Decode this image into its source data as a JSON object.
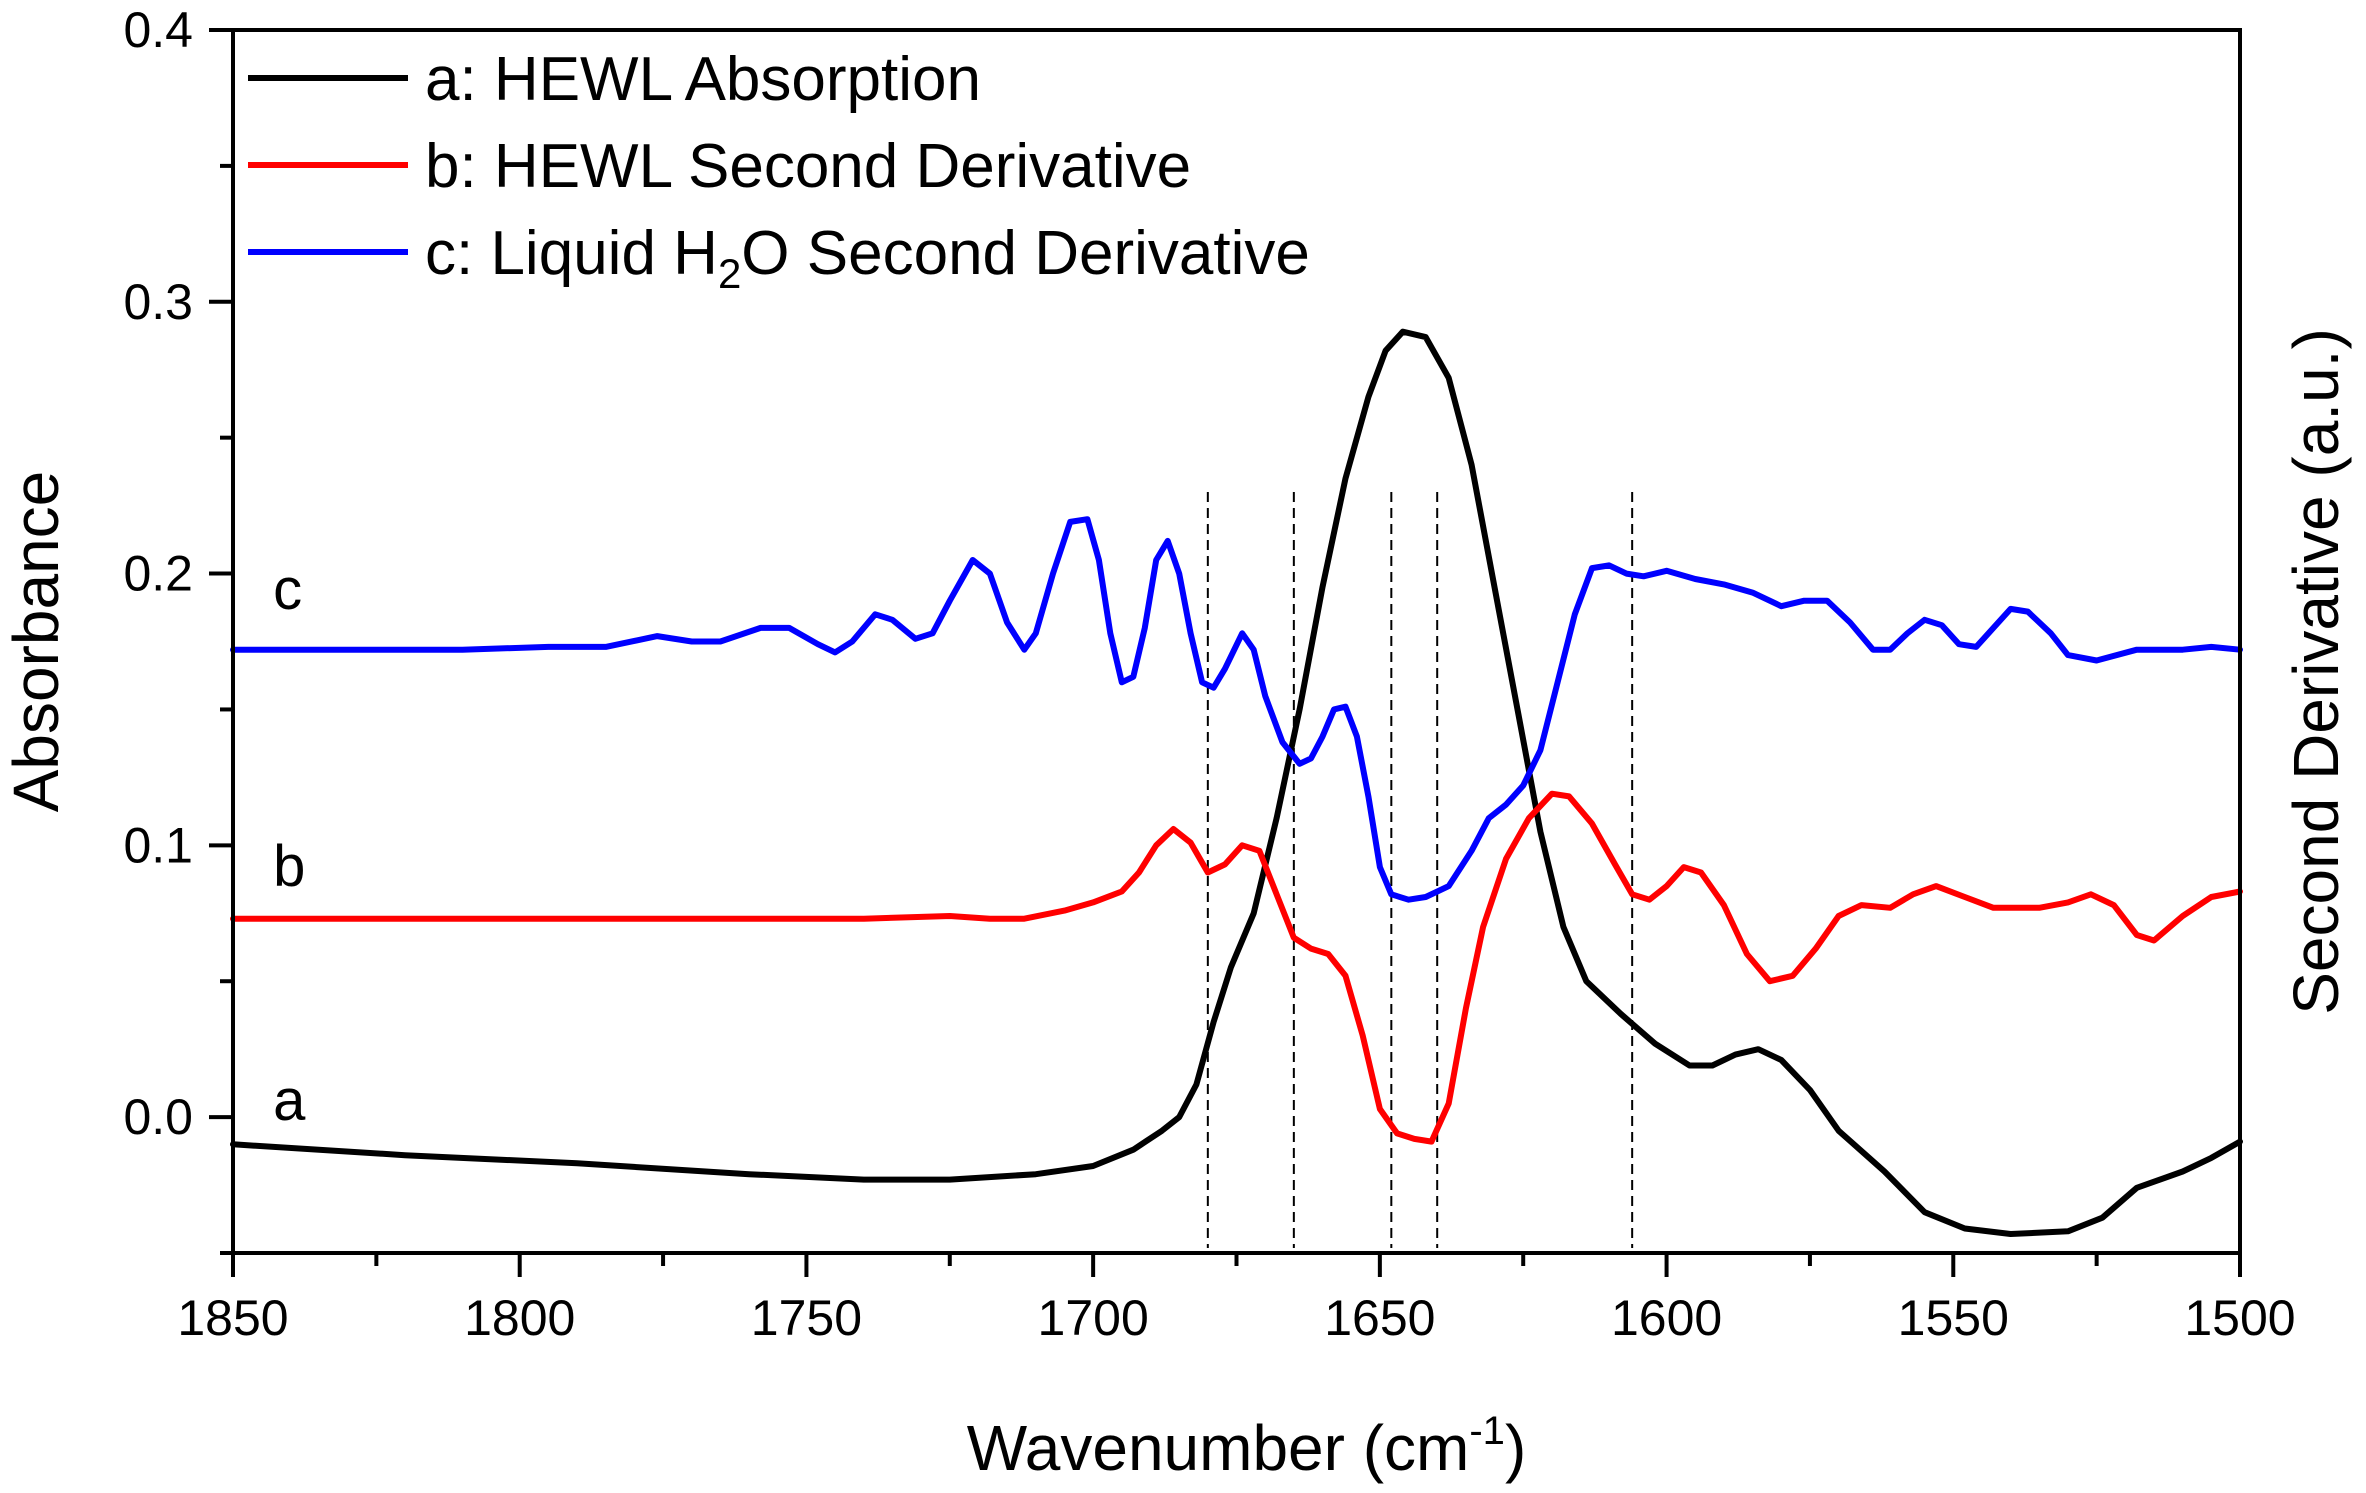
{
  "chart_data": {
    "type": "line",
    "title": "",
    "xlabel": "Wavenumber (cm",
    "xlabel_sup": "-1",
    "xlabel_end": ")",
    "ylabel": "Absorbance",
    "y2label": "Second Derivative (a.u.)",
    "xlim": [
      1850,
      1500
    ],
    "ylim": [
      -0.05,
      0.4
    ],
    "x_ticks": [
      1850,
      1800,
      1750,
      1700,
      1650,
      1600,
      1550,
      1500
    ],
    "x_tick_labels": [
      "1850",
      "1800",
      "1750",
      "1700",
      "1650",
      "1600",
      "1550",
      "1500"
    ],
    "y_ticks": [
      0.0,
      0.1,
      0.2,
      0.3,
      0.4
    ],
    "y_tick_labels": [
      "0.0",
      "0.1",
      "0.2",
      "0.3",
      "0.4"
    ],
    "reference_lines": [
      1680,
      1665,
      1648,
      1640,
      1606
    ],
    "legend": [
      {
        "key": "a",
        "text": "a: HEWL Absorption",
        "color": "#000000"
      },
      {
        "key": "b",
        "text": "b: HEWL Second Derivative",
        "color": "#ff0000"
      },
      {
        "key": "c",
        "text_pre": "c: Liquid H",
        "text_sub": "2",
        "text_post": "O Second Derivative",
        "color": "#0000ff"
      }
    ],
    "curve_labels": [
      {
        "text": "c",
        "x": 1843,
        "y": 0.187
      },
      {
        "text": "b",
        "x": 1843,
        "y": 0.085
      },
      {
        "text": "a",
        "x": 1843,
        "y": -0.001
      }
    ],
    "series": [
      {
        "name": "a: HEWL Absorption",
        "color": "#000000",
        "points": [
          [
            1850,
            -0.01
          ],
          [
            1820,
            -0.014
          ],
          [
            1790,
            -0.017
          ],
          [
            1760,
            -0.021
          ],
          [
            1740,
            -0.023
          ],
          [
            1725,
            -0.023
          ],
          [
            1710,
            -0.021
          ],
          [
            1700,
            -0.018
          ],
          [
            1693,
            -0.012
          ],
          [
            1688,
            -0.005
          ],
          [
            1685,
            0.0
          ],
          [
            1682,
            0.012
          ],
          [
            1679,
            0.035
          ],
          [
            1676,
            0.055
          ],
          [
            1672,
            0.075
          ],
          [
            1668,
            0.11
          ],
          [
            1664,
            0.15
          ],
          [
            1660,
            0.195
          ],
          [
            1656,
            0.235
          ],
          [
            1652,
            0.265
          ],
          [
            1649,
            0.282
          ],
          [
            1646,
            0.289
          ],
          [
            1642,
            0.287
          ],
          [
            1638,
            0.272
          ],
          [
            1634,
            0.24
          ],
          [
            1630,
            0.195
          ],
          [
            1626,
            0.15
          ],
          [
            1622,
            0.105
          ],
          [
            1618,
            0.07
          ],
          [
            1614,
            0.05
          ],
          [
            1608,
            0.038
          ],
          [
            1602,
            0.027
          ],
          [
            1596,
            0.019
          ],
          [
            1592,
            0.019
          ],
          [
            1588,
            0.023
          ],
          [
            1584,
            0.025
          ],
          [
            1580,
            0.021
          ],
          [
            1575,
            0.01
          ],
          [
            1570,
            -0.005
          ],
          [
            1562,
            -0.02
          ],
          [
            1555,
            -0.035
          ],
          [
            1548,
            -0.041
          ],
          [
            1540,
            -0.043
          ],
          [
            1530,
            -0.042
          ],
          [
            1524,
            -0.037
          ],
          [
            1518,
            -0.026
          ],
          [
            1510,
            -0.02
          ],
          [
            1505,
            -0.015
          ],
          [
            1500,
            -0.009
          ]
        ]
      },
      {
        "name": "b: HEWL Second Derivative",
        "color": "#ff0000",
        "points": [
          [
            1850,
            0.073
          ],
          [
            1820,
            0.073
          ],
          [
            1790,
            0.073
          ],
          [
            1760,
            0.073
          ],
          [
            1740,
            0.073
          ],
          [
            1725,
            0.074
          ],
          [
            1718,
            0.073
          ],
          [
            1712,
            0.073
          ],
          [
            1705,
            0.076
          ],
          [
            1700,
            0.079
          ],
          [
            1695,
            0.083
          ],
          [
            1692,
            0.09
          ],
          [
            1689,
            0.1
          ],
          [
            1686,
            0.106
          ],
          [
            1683,
            0.101
          ],
          [
            1680,
            0.09
          ],
          [
            1677,
            0.093
          ],
          [
            1674,
            0.1
          ],
          [
            1671,
            0.098
          ],
          [
            1668,
            0.082
          ],
          [
            1665,
            0.066
          ],
          [
            1662,
            0.062
          ],
          [
            1659,
            0.06
          ],
          [
            1656,
            0.052
          ],
          [
            1653,
            0.03
          ],
          [
            1650,
            0.003
          ],
          [
            1647,
            -0.006
          ],
          [
            1644,
            -0.008
          ],
          [
            1641,
            -0.009
          ],
          [
            1638,
            0.005
          ],
          [
            1635,
            0.04
          ],
          [
            1632,
            0.07
          ],
          [
            1628,
            0.095
          ],
          [
            1624,
            0.11
          ],
          [
            1620,
            0.119
          ],
          [
            1617,
            0.118
          ],
          [
            1613,
            0.108
          ],
          [
            1609,
            0.093
          ],
          [
            1606,
            0.082
          ],
          [
            1603,
            0.08
          ],
          [
            1600,
            0.085
          ],
          [
            1597,
            0.092
          ],
          [
            1594,
            0.09
          ],
          [
            1590,
            0.078
          ],
          [
            1586,
            0.06
          ],
          [
            1582,
            0.05
          ],
          [
            1578,
            0.052
          ],
          [
            1574,
            0.062
          ],
          [
            1570,
            0.074
          ],
          [
            1566,
            0.078
          ],
          [
            1561,
            0.077
          ],
          [
            1557,
            0.082
          ],
          [
            1553,
            0.085
          ],
          [
            1548,
            0.081
          ],
          [
            1543,
            0.077
          ],
          [
            1535,
            0.077
          ],
          [
            1530,
            0.079
          ],
          [
            1526,
            0.082
          ],
          [
            1522,
            0.078
          ],
          [
            1518,
            0.067
          ],
          [
            1515,
            0.065
          ],
          [
            1510,
            0.074
          ],
          [
            1505,
            0.081
          ],
          [
            1500,
            0.083
          ]
        ]
      },
      {
        "name": "c: Liquid H2O Second Derivative",
        "color": "#0000ff",
        "points": [
          [
            1850,
            0.172
          ],
          [
            1830,
            0.172
          ],
          [
            1810,
            0.172
          ],
          [
            1795,
            0.173
          ],
          [
            1785,
            0.173
          ],
          [
            1776,
            0.177
          ],
          [
            1770,
            0.175
          ],
          [
            1765,
            0.175
          ],
          [
            1758,
            0.18
          ],
          [
            1753,
            0.18
          ],
          [
            1748,
            0.174
          ],
          [
            1745,
            0.171
          ],
          [
            1742,
            0.175
          ],
          [
            1738,
            0.185
          ],
          [
            1735,
            0.183
          ],
          [
            1731,
            0.176
          ],
          [
            1728,
            0.178
          ],
          [
            1725,
            0.19
          ],
          [
            1721,
            0.205
          ],
          [
            1718,
            0.2
          ],
          [
            1715,
            0.182
          ],
          [
            1712,
            0.172
          ],
          [
            1710,
            0.178
          ],
          [
            1707,
            0.2
          ],
          [
            1704,
            0.219
          ],
          [
            1701,
            0.22
          ],
          [
            1699,
            0.205
          ],
          [
            1697,
            0.178
          ],
          [
            1695,
            0.16
          ],
          [
            1693,
            0.162
          ],
          [
            1691,
            0.18
          ],
          [
            1689,
            0.205
          ],
          [
            1687,
            0.212
          ],
          [
            1685,
            0.2
          ],
          [
            1683,
            0.178
          ],
          [
            1681,
            0.16
          ],
          [
            1679,
            0.158
          ],
          [
            1677,
            0.165
          ],
          [
            1674,
            0.178
          ],
          [
            1672,
            0.172
          ],
          [
            1670,
            0.155
          ],
          [
            1667,
            0.138
          ],
          [
            1664,
            0.13
          ],
          [
            1662,
            0.132
          ],
          [
            1660,
            0.14
          ],
          [
            1658,
            0.15
          ],
          [
            1656,
            0.151
          ],
          [
            1654,
            0.14
          ],
          [
            1652,
            0.118
          ],
          [
            1650,
            0.092
          ],
          [
            1648,
            0.082
          ],
          [
            1645,
            0.08
          ],
          [
            1642,
            0.081
          ],
          [
            1638,
            0.085
          ],
          [
            1634,
            0.098
          ],
          [
            1631,
            0.11
          ],
          [
            1628,
            0.115
          ],
          [
            1625,
            0.122
          ],
          [
            1622,
            0.135
          ],
          [
            1619,
            0.16
          ],
          [
            1616,
            0.185
          ],
          [
            1613,
            0.202
          ],
          [
            1610,
            0.203
          ],
          [
            1607,
            0.2
          ],
          [
            1604,
            0.199
          ],
          [
            1600,
            0.201
          ],
          [
            1595,
            0.198
          ],
          [
            1590,
            0.196
          ],
          [
            1585,
            0.193
          ],
          [
            1580,
            0.188
          ],
          [
            1576,
            0.19
          ],
          [
            1572,
            0.19
          ],
          [
            1568,
            0.182
          ],
          [
            1564,
            0.172
          ],
          [
            1561,
            0.172
          ],
          [
            1558,
            0.178
          ],
          [
            1555,
            0.183
          ],
          [
            1552,
            0.181
          ],
          [
            1549,
            0.174
          ],
          [
            1546,
            0.173
          ],
          [
            1543,
            0.18
          ],
          [
            1540,
            0.187
          ],
          [
            1537,
            0.186
          ],
          [
            1533,
            0.178
          ],
          [
            1530,
            0.17
          ],
          [
            1525,
            0.168
          ],
          [
            1518,
            0.172
          ],
          [
            1510,
            0.172
          ],
          [
            1505,
            0.173
          ],
          [
            1500,
            0.172
          ]
        ]
      }
    ]
  }
}
